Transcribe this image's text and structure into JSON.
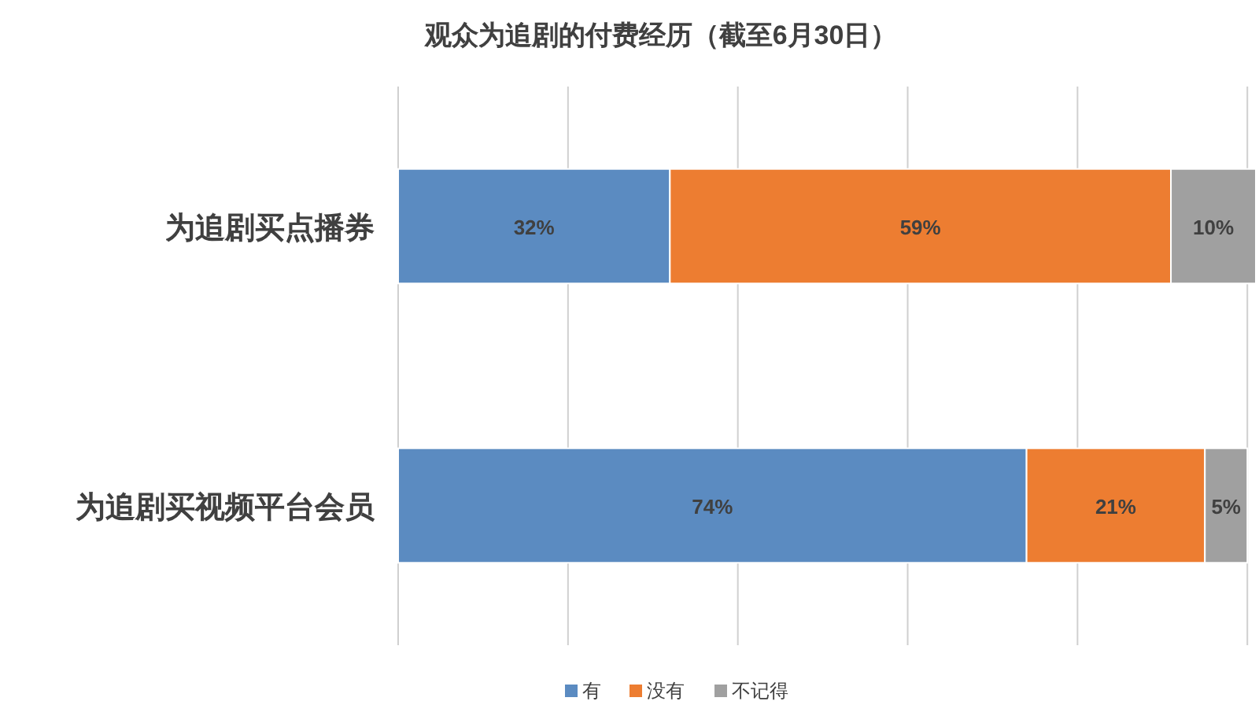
{
  "chart_data": {
    "type": "bar",
    "title": "观众为追剧的付费经历（截至6月30日）",
    "orientation": "horizontal",
    "stacked": true,
    "categories": [
      "为追剧买点播券",
      "为追剧买视频平台会员"
    ],
    "series": [
      {
        "name": "有",
        "color": "#5b8bc1",
        "values": [
          32,
          74
        ],
        "value_labels": [
          "32%",
          "74%"
        ]
      },
      {
        "name": "没有",
        "color": "#ed7d31",
        "values": [
          59,
          21
        ],
        "value_labels": [
          "59%",
          "21%"
        ]
      },
      {
        "name": "不记得",
        "color": "#a0a0a0",
        "values": [
          10,
          5
        ],
        "value_labels": [
          "10%",
          "5%"
        ]
      }
    ],
    "xlim": [
      0,
      101
    ],
    "xticks": [
      {
        "value": 0,
        "label": null
      },
      {
        "value": 20,
        "label": null
      },
      {
        "value": 40,
        "label": null
      },
      {
        "value": 60,
        "label": null
      },
      {
        "value": 80,
        "label": null
      },
      {
        "value": 100,
        "label": null
      }
    ],
    "tick_labels": "y",
    "grid": "x",
    "legend": "bottom"
  }
}
